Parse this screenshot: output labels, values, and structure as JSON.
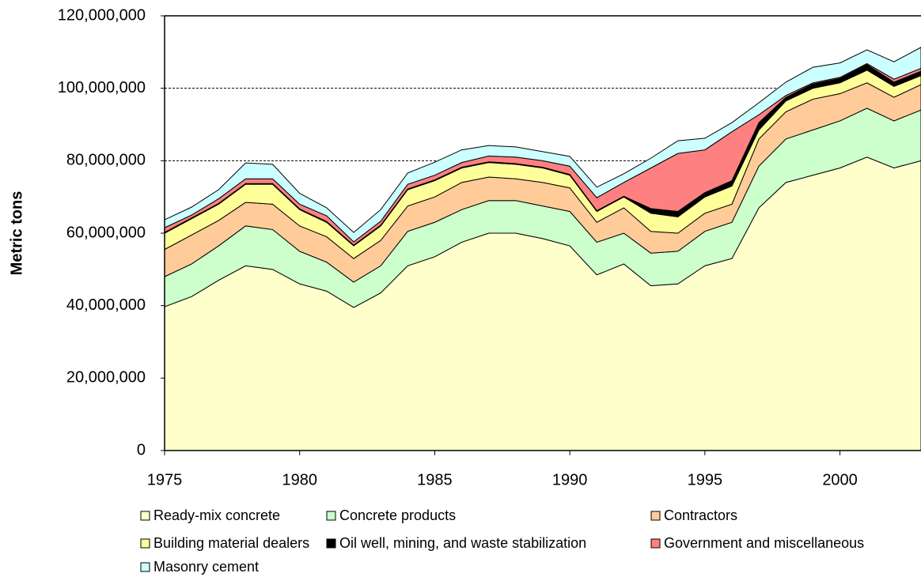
{
  "chart_data": {
    "type": "stacked_area",
    "ylabel": "Metric tons",
    "x": [
      1975,
      1976,
      1977,
      1978,
      1979,
      1980,
      1981,
      1982,
      1983,
      1984,
      1985,
      1986,
      1987,
      1988,
      1989,
      1990,
      1991,
      1992,
      1993,
      1994,
      1995,
      1996,
      1997,
      1998,
      1999,
      2000,
      2001,
      2002,
      2003
    ],
    "xlim": [
      1975,
      2003
    ],
    "xticks": [
      1975,
      1980,
      1985,
      1990,
      1995,
      2000
    ],
    "ylim": [
      0,
      120000000
    ],
    "yticks": [
      0,
      {
        "value": 20000000,
        "label": "20,000,000"
      },
      {
        "value": 40000000,
        "label": "40,000,000"
      },
      {
        "value": 60000000,
        "label": "60,000,000"
      },
      {
        "value": 80000000,
        "label": "80,000,000"
      },
      {
        "value": 100000000,
        "label": "100,000,000"
      },
      {
        "value": 120000000,
        "label": "120,000,000"
      }
    ],
    "grid": true,
    "series": [
      {
        "name": "Ready-mix concrete",
        "color": "#ffffcc",
        "values": [
          39700000,
          42500000,
          47000000,
          51000000,
          50000000,
          46000000,
          44000000,
          39500000,
          43500000,
          51000000,
          53500000,
          57500000,
          60000000,
          60000000,
          58500000,
          56500000,
          48500000,
          51500000,
          45500000,
          46000000,
          51000000,
          53000000,
          67000000,
          74000000,
          76000000,
          78000000,
          81000000,
          78000000,
          80000000
        ]
      },
      {
        "name": "Concrete products",
        "color": "#ccffcc",
        "values": [
          8300000,
          9000000,
          9500000,
          11000000,
          11000000,
          9000000,
          8000000,
          7000000,
          7500000,
          9500000,
          9500000,
          9000000,
          9000000,
          9000000,
          9000000,
          9500000,
          9000000,
          8500000,
          9000000,
          9000000,
          9500000,
          10000000,
          11500000,
          12000000,
          12500000,
          13000000,
          13500000,
          13000000,
          14000000
        ]
      },
      {
        "name": "Contractors",
        "color": "#ffcc99",
        "values": [
          7500000,
          8000000,
          7000000,
          6500000,
          7000000,
          7000000,
          7000000,
          6500000,
          7000000,
          7000000,
          7000000,
          7500000,
          6500000,
          6000000,
          6500000,
          6500000,
          5500000,
          7000000,
          6000000,
          5000000,
          5000000,
          5000000,
          7500000,
          7500000,
          8500000,
          7500000,
          7000000,
          6500000,
          7000000
        ]
      },
      {
        "name": "Building material dealers",
        "color": "#ffff99",
        "values": [
          4500000,
          4500000,
          4500000,
          5000000,
          5500000,
          4500000,
          4000000,
          3500000,
          4000000,
          4500000,
          4500000,
          4000000,
          4000000,
          4000000,
          4000000,
          3500000,
          3000000,
          3000000,
          5000000,
          4500000,
          4500000,
          5000000,
          2500000,
          3000000,
          3000000,
          3000000,
          3500000,
          3000000,
          2500000
        ]
      },
      {
        "name": "Oil well, mining, and waste stabilization",
        "color": "#000000",
        "values": [
          200000,
          200000,
          200000,
          200000,
          200000,
          200000,
          200000,
          200000,
          200000,
          200000,
          200000,
          200000,
          200000,
          200000,
          200000,
          200000,
          200000,
          200000,
          1300000,
          1500000,
          1200000,
          1500000,
          2000000,
          1000000,
          1200000,
          1200000,
          1500000,
          1200000,
          1200000
        ]
      },
      {
        "name": "Government and miscellaneous",
        "color": "#ff8080",
        "values": [
          1300000,
          800000,
          1300000,
          1300000,
          1300000,
          1300000,
          1600000,
          900000,
          1100000,
          1300000,
          1300000,
          1300000,
          1600000,
          1800000,
          1800000,
          2300000,
          3600000,
          3800000,
          11200000,
          16000000,
          11800000,
          13500000,
          2200000,
          500000,
          300000,
          300000,
          300000,
          800000,
          800000
        ]
      },
      {
        "name": "Masonry cement",
        "color": "#ccffff",
        "values": [
          2200000,
          2200000,
          2500000,
          4400000,
          4000000,
          3000000,
          2200000,
          2600000,
          3200000,
          3100000,
          3600000,
          3500000,
          2900000,
          2800000,
          2500000,
          2700000,
          2900000,
          2400000,
          2700000,
          3500000,
          3200000,
          2500000,
          3300000,
          3700000,
          4300000,
          4000000,
          3800000,
          4800000,
          5800000
        ]
      }
    ]
  }
}
